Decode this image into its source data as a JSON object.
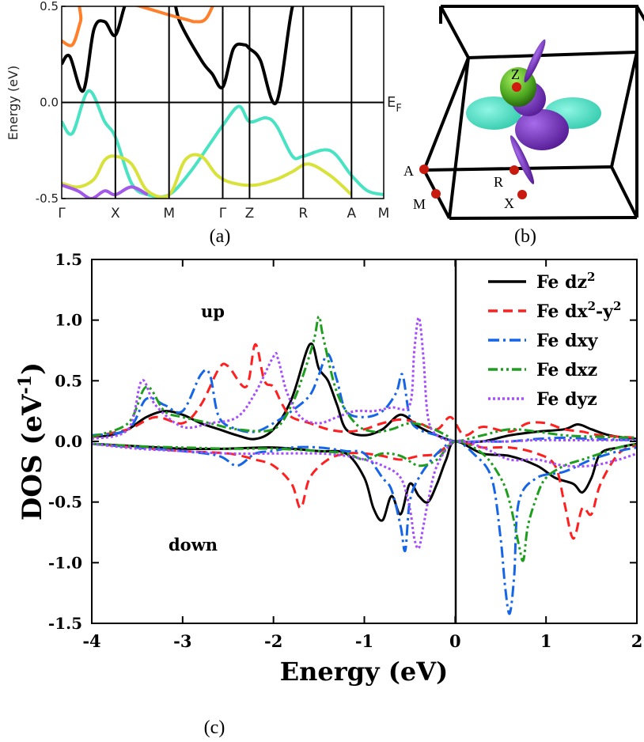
{
  "chart_data": [
    {
      "panel": "(a)",
      "type": "line",
      "title": "",
      "xlabel": "",
      "ylabel": "Energy (eV)",
      "ylim": [
        -0.5,
        0.5
      ],
      "yticks": [
        "0.5",
        "0.0",
        "-0.5"
      ],
      "kpoint_labels": [
        "Γ",
        "X",
        "M",
        "Γ",
        "Z",
        "R",
        "A",
        "M"
      ],
      "kpoint_positions": [
        0,
        1,
        2,
        3,
        3.5,
        4.5,
        5.4,
        6
      ],
      "fermi_label": "E",
      "fermi_subscript": "F",
      "series": [
        {
          "name": "black band",
          "color": "#000000",
          "x": [
            0,
            0.15,
            0.4,
            0.6,
            0.8,
            1.0,
            1.2,
            1.4,
            1.5,
            2.0,
            2.2,
            2.6,
            2.8,
            3.0,
            3.2,
            3.4,
            3.5,
            3.7,
            4.0,
            4.3,
            4.5,
            4.9,
            5.0
          ],
          "y": [
            0.2,
            0.24,
            0.06,
            0.38,
            0.42,
            0.35,
            0.52,
            0.55,
            0.55,
            0.6,
            0.42,
            0.22,
            0.15,
            0.08,
            0.28,
            0.3,
            0.28,
            0.22,
            0.0,
            0.5,
            0.55,
            0.6,
            0.6
          ]
        },
        {
          "name": "turquoise band",
          "color": "#48e3c2",
          "x": [
            0,
            0.2,
            0.5,
            0.8,
            1.0,
            1.3,
            1.6,
            2.0,
            2.4,
            2.8,
            3.0,
            3.3,
            3.5,
            3.8,
            4.0,
            4.3,
            4.5,
            5.0,
            5.4,
            5.7,
            6.0
          ],
          "y": [
            -0.1,
            -0.16,
            0.06,
            -0.1,
            -0.18,
            -0.42,
            -0.48,
            -0.48,
            -0.36,
            -0.2,
            -0.12,
            -0.02,
            -0.1,
            -0.08,
            -0.12,
            -0.28,
            -0.28,
            -0.25,
            -0.38,
            -0.46,
            -0.48
          ]
        },
        {
          "name": "yellow band",
          "color": "#d8e23a",
          "x": [
            0,
            0.3,
            0.6,
            0.8,
            1.0,
            1.3,
            1.6,
            2.0,
            2.3,
            2.6,
            2.9,
            3.2,
            3.6,
            4.0,
            4.3,
            4.6,
            5.0,
            5.4
          ],
          "y": [
            -0.42,
            -0.44,
            -0.4,
            -0.3,
            -0.28,
            -0.32,
            -0.46,
            -0.48,
            -0.3,
            -0.28,
            -0.38,
            -0.42,
            -0.43,
            -0.4,
            -0.36,
            -0.32,
            -0.38,
            -0.48
          ]
        },
        {
          "name": "violet band",
          "color": "#a259ea",
          "x": [
            0,
            0.3,
            0.55,
            0.8,
            1.0,
            1.3,
            1.6
          ],
          "y": [
            -0.43,
            -0.46,
            -0.5,
            -0.46,
            -0.48,
            -0.44,
            -0.48
          ]
        },
        {
          "name": "orange band",
          "color": "#ff7f2a",
          "x": [
            0,
            0.2,
            0.35,
            0.5,
            2.2,
            2.5,
            2.7,
            2.9
          ],
          "y": [
            0.32,
            0.3,
            0.42,
            0.56,
            0.44,
            0.42,
            0.44,
            0.56
          ]
        }
      ]
    },
    {
      "panel": "(b)",
      "type": "3d-fermi-surface",
      "point_labels": [
        "Z",
        "A",
        "R",
        "M",
        "X"
      ]
    },
    {
      "panel": "(c)",
      "type": "line",
      "xlabel": "Energy (eV)",
      "ylabel_main": "DOS (eV",
      "ylabel_sup": "-1",
      "ylabel_close": ")",
      "xlim": [
        -4,
        2
      ],
      "ylim": [
        -1.5,
        1.5
      ],
      "xticks": [
        -4,
        -3,
        -2,
        -1,
        0,
        1,
        2
      ],
      "yticks": [
        1.5,
        1.0,
        0.5,
        0.0,
        -0.5,
        -1.0,
        -1.5
      ],
      "xtick_labels": [
        "-4",
        "-3",
        "-2",
        "-1",
        "0",
        "1",
        "2"
      ],
      "ytick_labels": [
        "1.5",
        "1.0",
        "0.5",
        "0.0",
        "-0.5",
        "-1.0",
        "-1.5"
      ],
      "annotations": {
        "up": "up",
        "down": "down"
      },
      "legend_position": "top-right",
      "series": [
        {
          "name": "Fe dz2",
          "label_main": "Fe dz",
          "label_sup": "2",
          "label_tail": "",
          "color": "#000000",
          "dash": "",
          "up_x": [
            -4,
            -3.8,
            -3.6,
            -3.4,
            -3.2,
            -3.0,
            -2.8,
            -2.6,
            -2.4,
            -2.2,
            -2.0,
            -1.8,
            -1.6,
            -1.5,
            -1.4,
            -1.3,
            -1.2,
            -1.0,
            -0.8,
            -0.6,
            -0.4,
            -0.2,
            0,
            0.3,
            0.6,
            0.9,
            1.2,
            1.35,
            1.5,
            1.7,
            2.0
          ],
          "up_y": [
            0.04,
            0.05,
            0.1,
            0.2,
            0.25,
            0.22,
            0.15,
            0.1,
            0.05,
            0.02,
            0.1,
            0.35,
            0.8,
            0.6,
            0.5,
            0.3,
            0.1,
            0.05,
            0.1,
            0.22,
            0.12,
            0.05,
            0.0,
            0.0,
            0.05,
            0.08,
            0.1,
            0.14,
            0.1,
            0.05,
            0.02
          ],
          "down_x": [
            -4,
            -3.5,
            -3.0,
            -2.5,
            -2.0,
            -1.5,
            -1.2,
            -1.0,
            -0.9,
            -0.8,
            -0.7,
            -0.6,
            -0.5,
            -0.4,
            -0.3,
            -0.2,
            -0.1,
            0,
            0.3,
            0.6,
            0.9,
            1.1,
            1.3,
            1.4,
            1.5,
            1.6,
            1.8,
            2.0
          ],
          "down_y": [
            -0.02,
            -0.04,
            -0.06,
            -0.06,
            -0.05,
            -0.08,
            -0.1,
            -0.3,
            -0.55,
            -0.65,
            -0.45,
            -0.6,
            -0.35,
            -0.45,
            -0.5,
            -0.35,
            -0.15,
            0.0,
            -0.1,
            -0.12,
            -0.2,
            -0.3,
            -0.35,
            -0.42,
            -0.3,
            -0.1,
            -0.05,
            -0.02
          ]
        },
        {
          "name": "Fe dx2-y2",
          "label_main": "Fe dx",
          "label_sup": "2",
          "label_tail": "-y",
          "label_sup2": "2",
          "color": "#ff1f1f",
          "dash": "12,7",
          "up_x": [
            -4,
            -3.6,
            -3.3,
            -3.0,
            -2.8,
            -2.6,
            -2.5,
            -2.3,
            -2.2,
            -2.1,
            -2.0,
            -1.9,
            -1.8,
            -1.6,
            -1.4,
            -1.2,
            -1.0,
            -0.8,
            -0.6,
            -0.4,
            -0.2,
            -0.05,
            0.1,
            0.3,
            0.6,
            0.8,
            1.0,
            1.2,
            1.4,
            1.6,
            2.0
          ],
          "up_y": [
            0.04,
            0.1,
            0.2,
            0.15,
            0.3,
            0.6,
            0.62,
            0.45,
            0.8,
            0.5,
            0.45,
            0.3,
            0.2,
            0.15,
            0.1,
            0.08,
            0.1,
            0.15,
            0.18,
            0.15,
            0.1,
            0.2,
            0.05,
            0.12,
            0.08,
            0.15,
            0.15,
            0.1,
            0.08,
            0.05,
            0.03
          ],
          "down_x": [
            -4,
            -3.5,
            -3.0,
            -2.5,
            -2.2,
            -2.0,
            -1.8,
            -1.7,
            -1.6,
            -1.4,
            -1.2,
            -1.0,
            -0.8,
            -0.6,
            -0.4,
            -0.2,
            0,
            0.3,
            0.6,
            0.9,
            1.1,
            1.2,
            1.3,
            1.4,
            1.5,
            1.6,
            1.8,
            2.0
          ],
          "down_y": [
            -0.02,
            -0.05,
            -0.08,
            -0.1,
            -0.15,
            -0.2,
            -0.35,
            -0.55,
            -0.3,
            -0.15,
            -0.1,
            -0.1,
            -0.12,
            -0.15,
            -0.12,
            -0.1,
            0.0,
            -0.05,
            -0.05,
            -0.1,
            -0.2,
            -0.5,
            -0.8,
            -0.55,
            -0.6,
            -0.35,
            -0.1,
            -0.03
          ]
        },
        {
          "name": "Fe dxy",
          "label_main": "Fe dxy",
          "label_sup": "",
          "label_tail": "",
          "color": "#1565e8",
          "dash": "14,5,3,5",
          "up_x": [
            -4,
            -3.6,
            -3.4,
            -3.2,
            -3.0,
            -2.8,
            -2.7,
            -2.6,
            -2.4,
            -2.2,
            -2.0,
            -1.8,
            -1.6,
            -1.5,
            -1.4,
            -1.3,
            -1.2,
            -1.0,
            -0.8,
            -0.65,
            -0.58,
            -0.5,
            -0.4,
            -0.2,
            0,
            0.3,
            0.6,
            0.9,
            1.2,
            1.5,
            2.0
          ],
          "up_y": [
            0.05,
            0.1,
            0.35,
            0.3,
            0.25,
            0.55,
            0.55,
            0.2,
            0.1,
            0.08,
            0.15,
            0.25,
            0.38,
            0.55,
            0.72,
            0.5,
            0.25,
            0.2,
            0.25,
            0.4,
            0.55,
            0.2,
            0.1,
            0.05,
            0.0,
            0.0,
            0.0,
            0.02,
            0.03,
            0.02,
            0.01
          ],
          "down_x": [
            -4,
            -3.5,
            -3.0,
            -2.6,
            -2.4,
            -2.2,
            -2.0,
            -1.8,
            -1.5,
            -1.2,
            -1.0,
            -0.8,
            -0.7,
            -0.6,
            -0.55,
            -0.5,
            -0.4,
            -0.2,
            0,
            0.2,
            0.4,
            0.5,
            0.55,
            0.6,
            0.65,
            0.7,
            0.9,
            1.2,
            1.5,
            1.8,
            2.0
          ],
          "down_y": [
            -0.02,
            -0.05,
            -0.08,
            -0.12,
            -0.2,
            -0.1,
            -0.08,
            -0.05,
            -0.05,
            -0.08,
            -0.1,
            -0.3,
            -0.4,
            -0.7,
            -0.9,
            -0.5,
            -0.3,
            -0.1,
            0.0,
            -0.1,
            -0.3,
            -0.8,
            -1.2,
            -1.42,
            -1.1,
            -0.5,
            -0.3,
            -0.25,
            -0.15,
            -0.08,
            -0.05
          ]
        },
        {
          "name": "Fe dxz",
          "label_main": "Fe dxz",
          "label_sup": "",
          "label_tail": "",
          "color": "#1e9e1e",
          "dash": "12,4,3,4,3,4",
          "up_x": [
            -4,
            -3.6,
            -3.4,
            -3.2,
            -3.0,
            -2.7,
            -2.4,
            -2.0,
            -1.8,
            -1.65,
            -1.55,
            -1.5,
            -1.45,
            -1.3,
            -1.1,
            -0.9,
            -0.7,
            -0.5,
            -0.3,
            -0.1,
            0,
            0.3,
            0.6,
            0.9,
            1.2,
            1.5,
            2.0
          ],
          "up_y": [
            0.04,
            0.15,
            0.45,
            0.25,
            0.2,
            0.15,
            0.1,
            0.1,
            0.3,
            0.6,
            0.85,
            1.03,
            0.85,
            0.4,
            0.15,
            0.08,
            0.1,
            0.15,
            0.12,
            0.05,
            0.0,
            0.05,
            0.1,
            0.08,
            0.05,
            0.04,
            0.03
          ],
          "down_x": [
            -4,
            -3.5,
            -3.0,
            -2.5,
            -2.0,
            -1.5,
            -1.2,
            -1.0,
            -0.8,
            -0.6,
            -0.4,
            -0.2,
            0,
            0.3,
            0.5,
            0.6,
            0.7,
            0.75,
            0.8,
            0.9,
            1.0,
            1.2,
            1.4,
            1.6,
            1.8,
            2.0
          ],
          "down_y": [
            -0.02,
            -0.04,
            -0.05,
            -0.06,
            -0.06,
            -0.08,
            -0.1,
            -0.15,
            -0.1,
            -0.12,
            -0.2,
            -0.15,
            0.0,
            -0.1,
            -0.3,
            -0.5,
            -0.85,
            -0.98,
            -0.7,
            -0.45,
            -0.3,
            -0.2,
            -0.15,
            -0.1,
            -0.05,
            -0.02
          ]
        },
        {
          "name": "Fe dyz",
          "label_main": "Fe dyz",
          "label_sup": "",
          "label_tail": "",
          "color": "#a64dff",
          "dash": "3,3",
          "up_x": [
            -4,
            -3.6,
            -3.45,
            -3.3,
            -3.0,
            -2.7,
            -2.4,
            -2.2,
            -2.0,
            -1.95,
            -1.85,
            -1.7,
            -1.5,
            -1.3,
            -1.1,
            -0.9,
            -0.7,
            -0.5,
            -0.45,
            -0.4,
            -0.35,
            -0.3,
            -0.2,
            0,
            0.3,
            0.6,
            0.9,
            1.2,
            1.5,
            2.0
          ],
          "up_y": [
            0.02,
            0.1,
            0.5,
            0.3,
            0.12,
            0.15,
            0.2,
            0.4,
            0.7,
            0.68,
            0.4,
            0.2,
            0.15,
            0.2,
            0.25,
            0.25,
            0.28,
            0.3,
            0.75,
            1.02,
            0.7,
            0.2,
            0.05,
            0.0,
            0.0,
            0.0,
            0.01,
            0.01,
            0.01,
            0.01
          ],
          "down_x": [
            -4,
            -3.5,
            -3.0,
            -2.5,
            -2.0,
            -1.5,
            -1.2,
            -1.0,
            -0.8,
            -0.6,
            -0.5,
            -0.45,
            -0.4,
            -0.35,
            -0.3,
            -0.2,
            0,
            0.3,
            0.6,
            0.9,
            1.2,
            1.5,
            1.8,
            2.0
          ],
          "down_y": [
            -0.02,
            -0.06,
            -0.08,
            -0.1,
            -0.1,
            -0.1,
            -0.12,
            -0.15,
            -0.2,
            -0.3,
            -0.55,
            -0.8,
            -0.88,
            -0.7,
            -0.5,
            -0.2,
            0.0,
            -0.05,
            -0.15,
            -0.15,
            -0.2,
            -0.2,
            -0.15,
            -0.1
          ]
        }
      ]
    }
  ],
  "panel_labels": {
    "a": "(a)",
    "b": "(b)",
    "c": "(c)"
  },
  "panel_b_points": {
    "Z": "Z",
    "A": "A",
    "R": "R",
    "M": "M",
    "X": "X"
  }
}
